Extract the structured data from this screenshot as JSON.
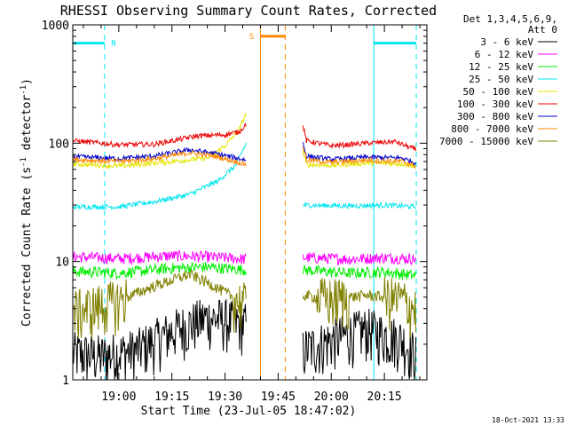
{
  "chart_data": {
    "type": "line",
    "title": "RHESSI Observing Summary Count Rates, Corrected",
    "xlabel": "Start Time (23-Jul-05 18:47:02)",
    "ylabel_main": "Corrected Count Rate (s",
    "ylabel_sup1": "-1",
    "ylabel_mid": " detector",
    "ylabel_sup2": "-1",
    "ylabel_end": ")",
    "y_scale": "log",
    "ylim": [
      1,
      1000
    ],
    "xlim": [
      "18:47",
      "20:27"
    ],
    "x_ticks": [
      "19:00",
      "19:15",
      "19:30",
      "19:45",
      "20:00",
      "20:15"
    ],
    "y_ticks": [
      "1",
      "10",
      "100",
      "1000"
    ],
    "legend_title": [
      "Det 1,3,4,5,6,9,",
      "Att 0"
    ],
    "legend_position": "right",
    "series": [
      {
        "name": "3 - 6 keV",
        "color": "#000000",
        "segments": [
          {
            "x": [
              "18:47",
              "18:55",
              "19:05",
              "19:15",
              "19:25",
              "19:36"
            ],
            "y": [
              1.7,
              1.6,
              1.8,
              2.6,
              3.4,
              3.0
            ]
          },
          {
            "x": [
              "19:52",
              "20:00",
              "20:10",
              "20:20",
              "20:24"
            ],
            "y": [
              1.8,
              2.2,
              2.7,
              2.2,
              1.6
            ]
          }
        ]
      },
      {
        "name": "6 - 12 keV",
        "color": "#ff00ff",
        "segments": [
          {
            "x": [
              "18:47",
              "19:00",
              "19:15",
              "19:25",
              "19:36"
            ],
            "y": [
              11,
              10.6,
              11.2,
              11,
              10.5
            ]
          },
          {
            "x": [
              "19:52",
              "20:05",
              "20:15",
              "20:24"
            ],
            "y": [
              10.8,
              10.5,
              10.8,
              10.5
            ]
          }
        ]
      },
      {
        "name": "12 - 25 keV",
        "color": "#00ee00",
        "segments": [
          {
            "x": [
              "18:47",
              "19:00",
              "19:15",
              "19:25",
              "19:36"
            ],
            "y": [
              8.3,
              8.0,
              8.8,
              9.0,
              8.5
            ]
          },
          {
            "x": [
              "19:52",
              "20:05",
              "20:15",
              "20:24"
            ],
            "y": [
              8.5,
              8.0,
              8.2,
              7.6
            ]
          }
        ]
      },
      {
        "name": "25 - 50 keV",
        "color": "#00e5ee",
        "segments": [
          {
            "x": [
              "18:47",
              "19:00",
              "19:10",
              "19:20",
              "19:28",
              "19:33",
              "19:36"
            ],
            "y": [
              29,
              29,
              32,
              37,
              48,
              65,
              100
            ]
          },
          {
            "x": [
              "19:52",
              "20:05",
              "20:15",
              "20:24"
            ],
            "y": [
              30,
              29.5,
              30,
              29
            ]
          }
        ]
      },
      {
        "name": "50 - 100 keV",
        "color": "#e5e500",
        "segments": [
          {
            "x": [
              "18:47",
              "19:00",
              "19:15",
              "19:25",
              "19:30",
              "19:34",
              "19:36"
            ],
            "y": [
              67,
              64,
              70,
              75,
              95,
              130,
              180
            ]
          },
          {
            "x": [
              "19:52",
              "19:53",
              "20:00",
              "20:10",
              "20:20",
              "20:24"
            ],
            "y": [
              84,
              66,
              65,
              68,
              67,
              64
            ]
          }
        ]
      },
      {
        "name": "100 - 300 keV",
        "color": "#ee0000",
        "segments": [
          {
            "x": [
              "18:47",
              "19:00",
              "19:10",
              "19:22",
              "19:30",
              "19:34",
              "19:36"
            ],
            "y": [
              105,
              97,
              98,
              115,
              118,
              125,
              145
            ]
          },
          {
            "x": [
              "19:52",
              "19:53",
              "20:00",
              "20:10",
              "20:18",
              "20:24"
            ],
            "y": [
              140,
              105,
              95,
              100,
              103,
              88
            ]
          }
        ]
      },
      {
        "name": "300 - 800 keV",
        "color": "#0000cc",
        "segments": [
          {
            "x": [
              "18:47",
              "19:00",
              "19:10",
              "19:20",
              "19:27",
              "19:36"
            ],
            "y": [
              77,
              74,
              78,
              88,
              82,
              72
            ]
          },
          {
            "x": [
              "19:52",
              "19:53",
              "20:00",
              "20:10",
              "20:20",
              "20:24"
            ],
            "y": [
              100,
              78,
              73,
              76,
              75,
              68
            ]
          }
        ]
      },
      {
        "name": "800 - 7000 keV",
        "color": "#ff8800",
        "segments": [
          {
            "x": [
              "18:47",
              "19:00",
              "19:10",
              "19:20",
              "19:27",
              "19:36"
            ],
            "y": [
              73,
              70,
              74,
              83,
              78,
              66
            ]
          },
          {
            "x": [
              "19:52",
              "19:53",
              "20:00",
              "20:10",
              "20:20",
              "20:24"
            ],
            "y": [
              95,
              72,
              69,
              72,
              70,
              64
            ]
          }
        ]
      },
      {
        "name": "7000 - 15000 keV",
        "color": "#808000",
        "segments": [
          {
            "x": [
              "18:47",
              "19:00",
              "19:10",
              "19:20",
              "19:27",
              "19:36"
            ],
            "y": [
              3.8,
              4.7,
              6.2,
              7.8,
              6.2,
              4.3
            ]
          },
          {
            "x": [
              "19:52",
              "20:00",
              "20:10",
              "20:20",
              "20:24"
            ],
            "y": [
              5.2,
              4.8,
              5.2,
              4.8,
              4.0
            ]
          }
        ]
      }
    ],
    "annotations": [
      {
        "label": "N",
        "color": "#00e5ee",
        "level": 700,
        "spans": [
          [
            "18:47",
            "18:56"
          ],
          [
            "20:12",
            "20:24"
          ]
        ],
        "solid_lines": [
          "18:47",
          "20:12"
        ],
        "dashed_lines": [
          "18:56",
          "20:24"
        ]
      },
      {
        "label": "S",
        "color": "#ff8800",
        "level": 800,
        "spans": [
          [
            "19:40",
            "19:47"
          ]
        ],
        "solid_lines": [
          "19:40"
        ],
        "dashed_lines": [
          "19:47"
        ]
      }
    ]
  },
  "footer_timestamp": "18-Oct-2021 13:33"
}
